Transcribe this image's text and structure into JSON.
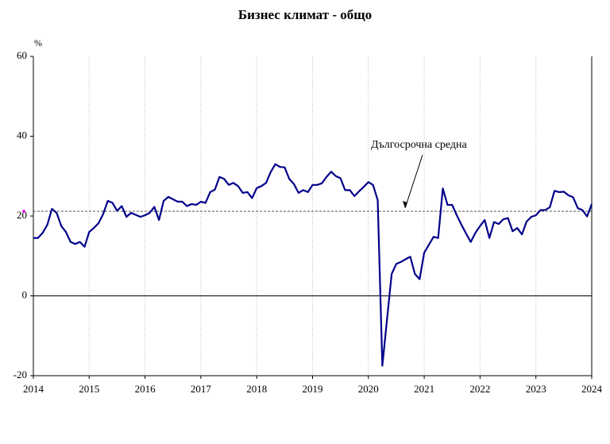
{
  "chart_data": {
    "type": "line",
    "title": "Бизнес климат - общо",
    "y_unit": "%",
    "annotation": "Дългосрочна средна",
    "long_term_average": 21.2,
    "color": "#00008b",
    "average_color": "#555555",
    "xlim": [
      2014,
      2024
    ],
    "xticks": [
      2014,
      2015,
      2016,
      2017,
      2018,
      2019,
      2020,
      2021,
      2022,
      2023,
      2024
    ],
    "ylim": [
      -20,
      60
    ],
    "yticks": [
      -20,
      0,
      20,
      40,
      60
    ],
    "x": [
      2014,
      2014.083,
      2014.167,
      2014.25,
      2014.333,
      2014.417,
      2014.5,
      2014.583,
      2014.667,
      2014.75,
      2014.833,
      2014.917,
      2015,
      2015.083,
      2015.167,
      2015.25,
      2015.333,
      2015.417,
      2015.5,
      2015.583,
      2015.667,
      2015.75,
      2015.833,
      2015.917,
      2016,
      2016.083,
      2016.167,
      2016.25,
      2016.333,
      2016.417,
      2016.5,
      2016.583,
      2016.667,
      2016.75,
      2016.833,
      2016.917,
      2017,
      2017.083,
      2017.167,
      2017.25,
      2017.333,
      2017.417,
      2017.5,
      2017.583,
      2017.667,
      2017.75,
      2017.833,
      2017.917,
      2018,
      2018.083,
      2018.167,
      2018.25,
      2018.333,
      2018.417,
      2018.5,
      2018.583,
      2018.667,
      2018.75,
      2018.833,
      2018.917,
      2019,
      2019.083,
      2019.167,
      2019.25,
      2019.333,
      2019.417,
      2019.5,
      2019.583,
      2019.667,
      2019.75,
      2019.833,
      2019.917,
      2020,
      2020.083,
      2020.167,
      2020.25,
      2020.333,
      2020.417,
      2020.5,
      2020.583,
      2020.667,
      2020.75,
      2020.833,
      2020.917,
      2021,
      2021.083,
      2021.167,
      2021.25,
      2021.333,
      2021.417,
      2021.5,
      2021.583,
      2021.667,
      2021.75,
      2021.833,
      2021.917,
      2022,
      2022.083,
      2022.167,
      2022.25,
      2022.333,
      2022.417,
      2022.5,
      2022.583,
      2022.667,
      2022.75,
      2022.833,
      2022.917,
      2023,
      2023.083,
      2023.167,
      2023.25,
      2023.333,
      2023.417,
      2023.5,
      2023.583,
      2023.667,
      2023.75,
      2023.833,
      2023.917,
      2024
    ],
    "values": [
      14.5,
      14.5,
      15.8,
      17.8,
      21.8,
      20.8,
      17.5,
      16,
      13.5,
      13,
      13.5,
      12.3,
      16,
      17,
      18.2,
      20.5,
      23.8,
      23.3,
      21.3,
      22.5,
      19.8,
      20.8,
      20.3,
      19.8,
      20.2,
      20.8,
      22.3,
      19,
      23.8,
      24.8,
      24.2,
      23.6,
      23.6,
      22.5,
      23,
      22.8,
      23.6,
      23.3,
      26,
      26.6,
      29.8,
      29.3,
      27.8,
      28.3,
      27.5,
      25.8,
      26,
      24.5,
      27,
      27.5,
      28.3,
      31,
      33,
      32.3,
      32.2,
      29.3,
      28,
      25.8,
      26.5,
      26,
      27.8,
      27.8,
      28.2,
      29.8,
      31.1,
      30,
      29.5,
      26.5,
      26.5,
      25,
      26.2,
      27.3,
      28.5,
      27.8,
      24,
      -17.5,
      -6,
      5.5,
      8,
      8.5,
      9.2,
      9.8,
      5.5,
      4.2,
      10.8,
      12.8,
      14.8,
      14.5,
      26.9,
      22.8,
      22.8,
      20.2,
      17.8,
      15.6,
      13.5,
      15.8,
      17.5,
      19,
      14.5,
      18.5,
      18,
      19.2,
      19.5,
      16.2,
      17,
      15.4,
      18.6,
      19.8,
      20.2,
      21.5,
      21.5,
      22.2,
      26.3,
      26,
      26.1,
      25.2,
      24.7,
      22,
      21.5,
      19.9,
      23
    ]
  }
}
